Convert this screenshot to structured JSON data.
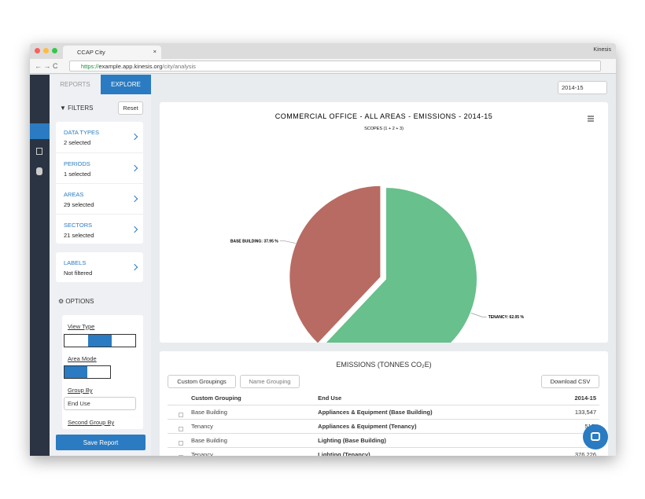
{
  "browser": {
    "tab_title": "CCAP City",
    "url_scheme": "https://",
    "url_host": "example.app.kinesis.org",
    "url_path": "/city/analysis",
    "profile": "Kinesis"
  },
  "sidebar": {
    "tabs": [
      "REPORTS",
      "EXPLORE"
    ],
    "filters_title": "FILTERS",
    "reset": "Reset",
    "filters": [
      {
        "label": "DATA TYPES",
        "value": "2 selected"
      },
      {
        "label": "PERIODS",
        "value": "1 selected"
      },
      {
        "label": "AREAS",
        "value": "29 selected"
      },
      {
        "label": "SECTORS",
        "value": "21 selected"
      }
    ],
    "labels": {
      "label": "LABELS",
      "value": "Not filtered"
    },
    "options_title": "OPTIONS",
    "view_type": "View Type",
    "area_mode": "Area Mode",
    "group_by": "Group By",
    "group_by_value": "End Use",
    "second_group_by": "Second Group By",
    "save": "Save Report"
  },
  "period": "2014-15",
  "chart_data": {
    "type": "pie",
    "title": "COMMERCIAL OFFICE - ALL AREAS - EMISSIONS - 2014-15",
    "subtitle": "SCOPES (1 + 2 + 3)",
    "values": [
      62.05,
      37.95
    ],
    "value_labels": [
      "TENANCY: 62.05 %",
      "BASE BUILDING: 37.95 %"
    ],
    "colors": [
      "#68c08c",
      "#b86b62"
    ],
    "exploded": [
      false,
      true
    ]
  },
  "table": {
    "title": "EMISSIONS (TONNES CO₂E)",
    "buttons": [
      "Custom Groupings",
      "Name Grouping",
      "Download CSV"
    ],
    "columns": [
      "Custom Grouping",
      "End Use",
      "2014-15"
    ],
    "rows": [
      [
        "Base Building",
        "Appliances & Equipment (Base Building)",
        "133,547"
      ],
      [
        "Tenancy",
        "Appliances & Equipment (Tenancy)",
        "515,"
      ],
      [
        "Base Building",
        "Lighting (Base Building)",
        "78"
      ],
      [
        "Tenancy",
        "Lighting (Tenancy)",
        "376,226"
      ]
    ]
  }
}
